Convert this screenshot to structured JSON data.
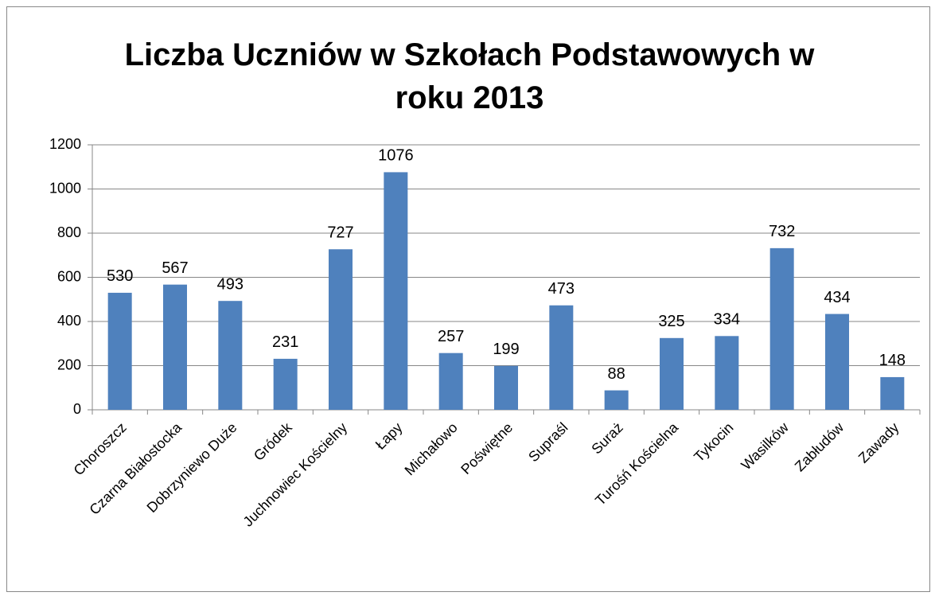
{
  "chart_data": {
    "type": "bar",
    "title": "Liczba Uczniów w Szkołach Podstawowych w roku 2013",
    "categories": [
      "Choroszcz",
      "Czarna Białostocka",
      "Dobrzyniewo Duże",
      "Gródek",
      "Juchnowiec Kościelny",
      "Łapy",
      "Michałowo",
      "Poświętne",
      "Supraśl",
      "Suraż",
      "Turośń Kościelna",
      "Tykocin",
      "Wasilków",
      "Zabłudów",
      "Zawady"
    ],
    "values": [
      530,
      567,
      493,
      231,
      727,
      1076,
      257,
      199,
      473,
      88,
      325,
      334,
      732,
      434,
      148
    ],
    "color": "#4f81bd",
    "ylim": [
      0,
      1200
    ],
    "yticks": [
      0,
      200,
      400,
      600,
      800,
      1000,
      1200
    ],
    "grid": true
  }
}
